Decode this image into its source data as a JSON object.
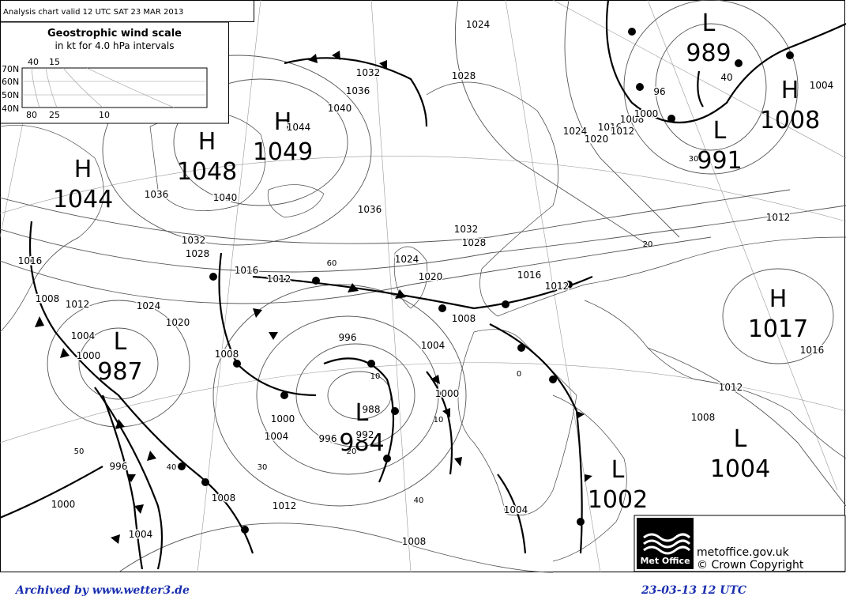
{
  "header": {
    "title": "Analysis chart  valid 12 UTC SAT 23  MAR 2013"
  },
  "wind_scale": {
    "title": "Geostrophic wind scale",
    "subtitle": "in kt for 4.0 hPa intervals",
    "latitudes": [
      "70N",
      "60N",
      "50N",
      "40N"
    ],
    "top_speeds": [
      40,
      15
    ],
    "bottom_speeds": [
      80,
      25,
      10
    ]
  },
  "centers": [
    {
      "kind": "H",
      "pressure": 1044
    },
    {
      "kind": "H",
      "pressure": 1048
    },
    {
      "kind": "H",
      "pressure": 1049
    },
    {
      "kind": "L",
      "pressure": 987
    },
    {
      "kind": "L",
      "pressure": 984
    },
    {
      "kind": "L",
      "pressure": 989
    },
    {
      "kind": "L",
      "pressure": 991
    },
    {
      "kind": "H",
      "pressure": 1008
    },
    {
      "kind": "H",
      "pressure": 1017
    },
    {
      "kind": "L",
      "pressure": 1002
    },
    {
      "kind": "L",
      "pressure": 1004
    }
  ],
  "isobar_labels": [
    1024,
    1032,
    1036,
    1040,
    1028,
    1044,
    1024,
    1020,
    1016,
    1012,
    1008,
    1000,
    96,
    1040,
    1036,
    1032,
    1028,
    1036,
    1032,
    1028,
    1024,
    1020,
    1016,
    1012,
    1016,
    1012,
    1016,
    1008,
    1012,
    1024,
    1020,
    1004,
    1000,
    996,
    1008,
    1004,
    1000,
    988,
    992,
    996,
    1000,
    1004,
    1008,
    1012,
    1008,
    996,
    1000,
    1004,
    1008,
    1004,
    1012,
    1008,
    1016,
    1012,
    1004,
    40
  ],
  "wind_labels": [
    60,
    20,
    30,
    10,
    10,
    0,
    20,
    30,
    40,
    40,
    50
  ],
  "logo": {
    "brand": "Met Office",
    "site": "metoffice.gov.uk",
    "copyright": "© Crown Copyright"
  },
  "footer": {
    "archive": "Archived by www.wetter3.de",
    "stamp": "23-03-13 12 UTC"
  }
}
